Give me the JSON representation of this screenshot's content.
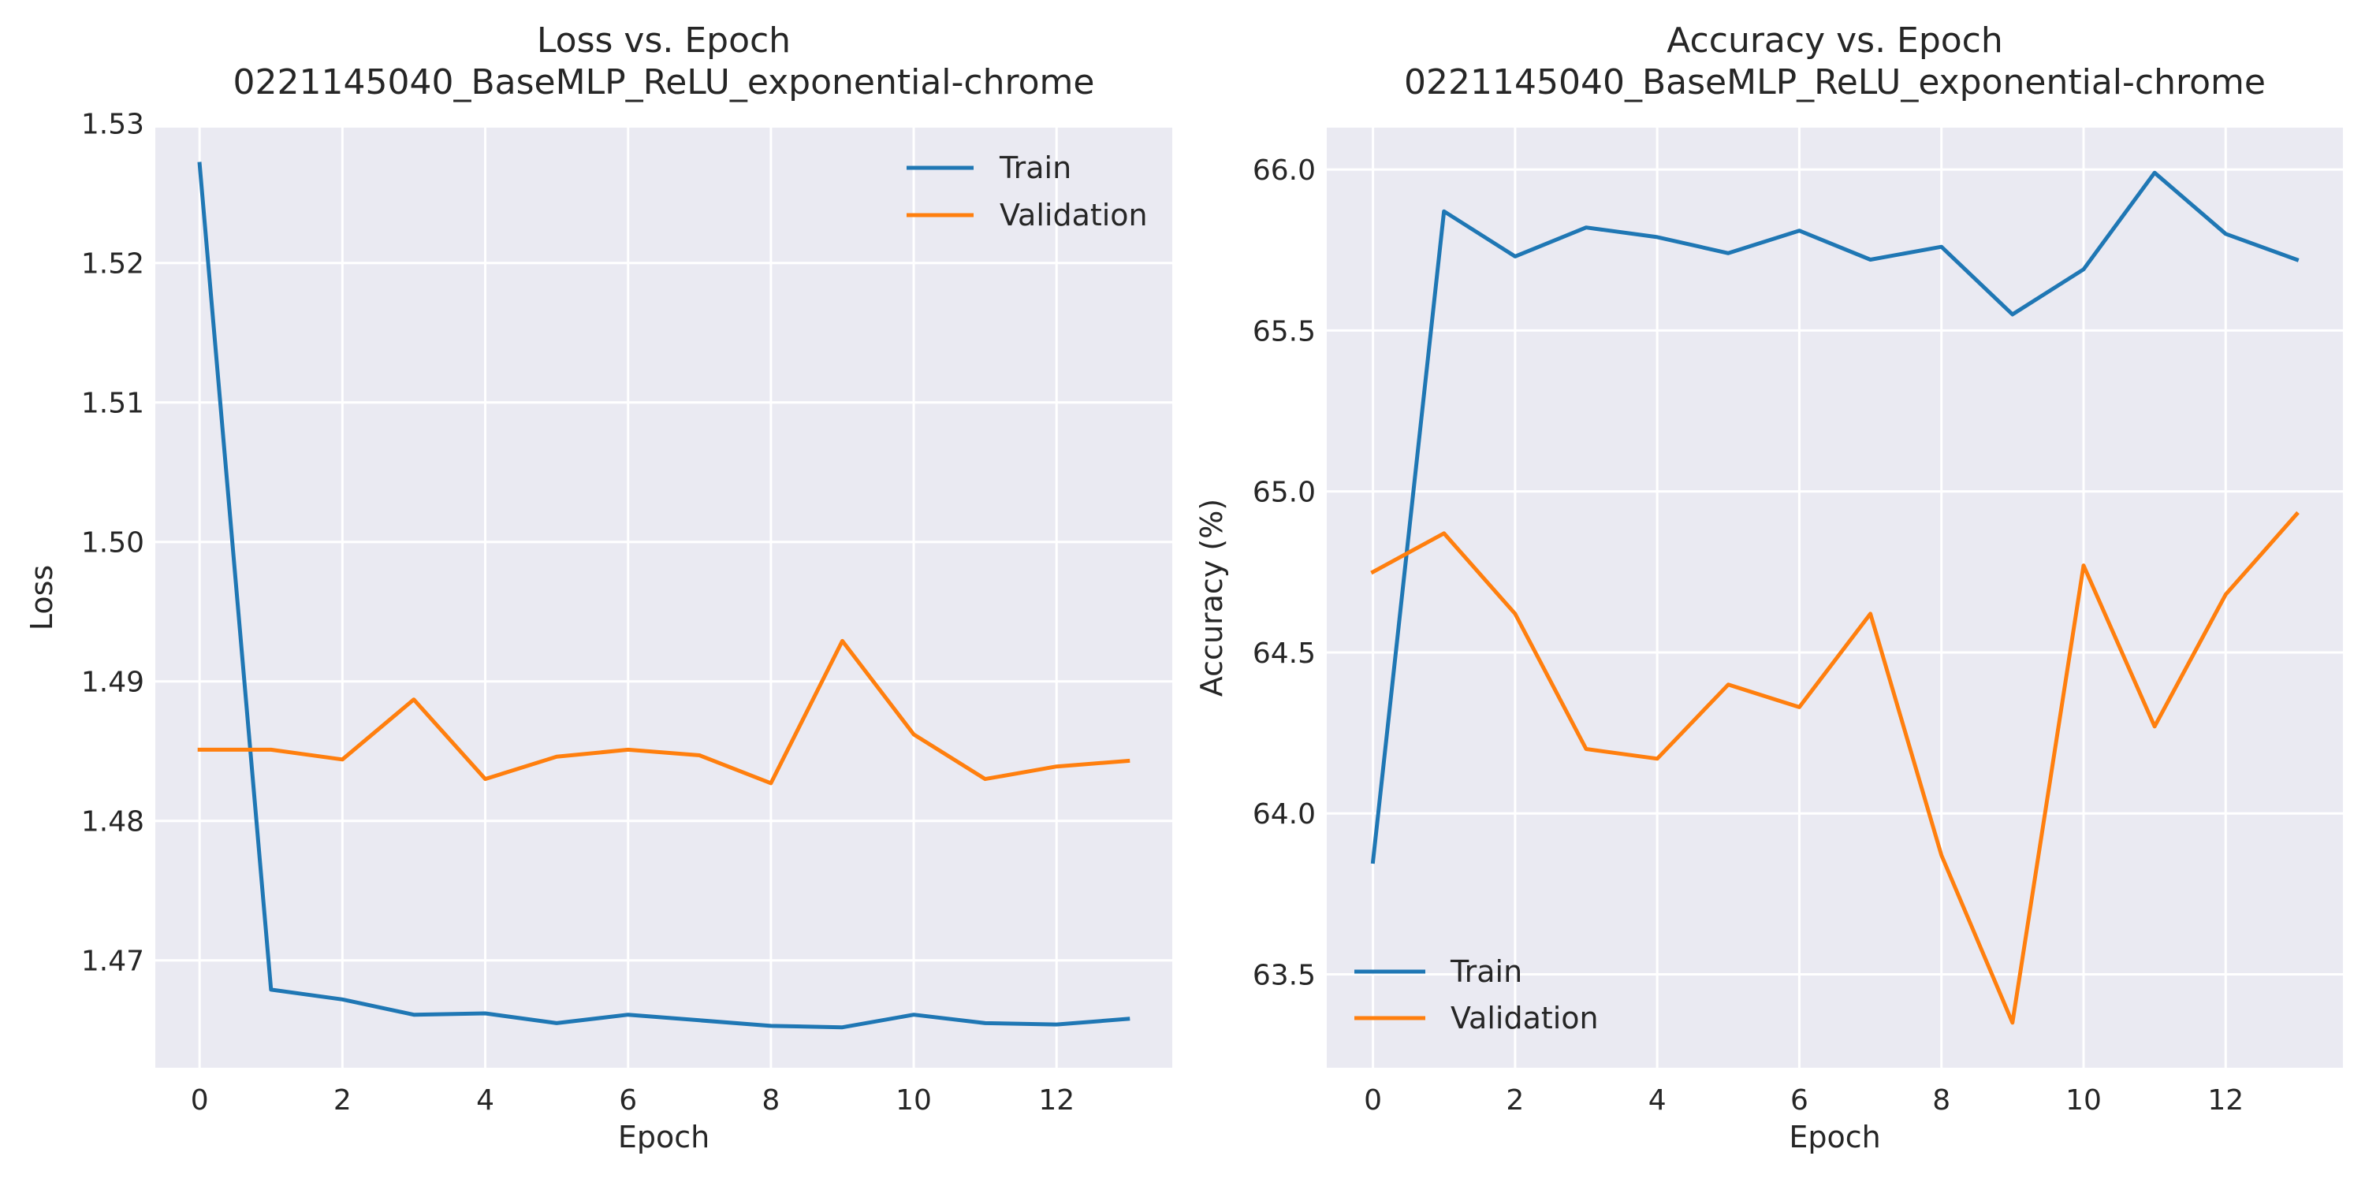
{
  "figure": {
    "background": "#ffffff",
    "axes_background": "#eaeaf2",
    "grid_color": "#ffffff",
    "train_color": "#1f77b4",
    "validation_color": "#ff7f0e"
  },
  "chart_data": [
    {
      "type": "line",
      "title": "Loss vs. Epoch",
      "subtitle": "0221145040_BaseMLP_ReLU_exponential-chrome",
      "xlabel": "Epoch",
      "ylabel": "Loss",
      "xlim": [
        -0.62,
        13.62
      ],
      "ylim": [
        1.4623,
        1.5297
      ],
      "xticks": [
        0,
        2,
        4,
        6,
        8,
        10,
        12
      ],
      "yticks": [
        1.47,
        1.48,
        1.49,
        1.5,
        1.51,
        1.52,
        1.53
      ],
      "ytick_labels": [
        "1.47",
        "1.48",
        "1.49",
        "1.50",
        "1.51",
        "1.52",
        "1.53"
      ],
      "grid": true,
      "legend": {
        "position": "top-right",
        "entries": [
          "Train",
          "Validation"
        ]
      },
      "x": [
        0,
        1,
        2,
        3,
        4,
        5,
        6,
        7,
        8,
        9,
        10,
        11,
        12,
        13
      ],
      "series": [
        {
          "name": "Train",
          "color": "#1f77b4",
          "values": [
            1.5271,
            1.4679,
            1.4672,
            1.4661,
            1.4662,
            1.4655,
            1.4661,
            1.4657,
            1.4653,
            1.4652,
            1.4661,
            1.4655,
            1.4654,
            1.4658
          ]
        },
        {
          "name": "Validation",
          "color": "#ff7f0e",
          "values": [
            1.4851,
            1.4851,
            1.4844,
            1.4887,
            1.483,
            1.4846,
            1.4851,
            1.4847,
            1.4827,
            1.4929,
            1.4862,
            1.483,
            1.4839,
            1.4843
          ]
        }
      ]
    },
    {
      "type": "line",
      "title": "Accuracy vs. Epoch",
      "subtitle": "0221145040_BaseMLP_ReLU_exponential-chrome",
      "xlabel": "Epoch",
      "ylabel": "Accuracy (%)",
      "xlim": [
        -0.65,
        13.65
      ],
      "ylim": [
        63.21,
        66.13
      ],
      "xticks": [
        0,
        2,
        4,
        6,
        8,
        10,
        12
      ],
      "yticks": [
        63.5,
        64.0,
        64.5,
        65.0,
        65.5,
        66.0
      ],
      "ytick_labels": [
        "63.5",
        "64.0",
        "64.5",
        "65.0",
        "65.5",
        "66.0"
      ],
      "grid": true,
      "legend": {
        "position": "bottom-left",
        "entries": [
          "Train",
          "Validation"
        ]
      },
      "x": [
        0,
        1,
        2,
        3,
        4,
        5,
        6,
        7,
        8,
        9,
        10,
        11,
        12,
        13
      ],
      "series": [
        {
          "name": "Train",
          "color": "#1f77b4",
          "values": [
            63.85,
            65.87,
            65.73,
            65.82,
            65.79,
            65.74,
            65.81,
            65.72,
            65.76,
            65.55,
            65.69,
            65.99,
            65.8,
            65.72
          ]
        },
        {
          "name": "Validation",
          "color": "#ff7f0e",
          "values": [
            64.75,
            64.87,
            64.62,
            64.2,
            64.17,
            64.4,
            64.33,
            64.62,
            63.87,
            63.35,
            64.77,
            64.27,
            64.68,
            64.93
          ]
        }
      ]
    }
  ]
}
